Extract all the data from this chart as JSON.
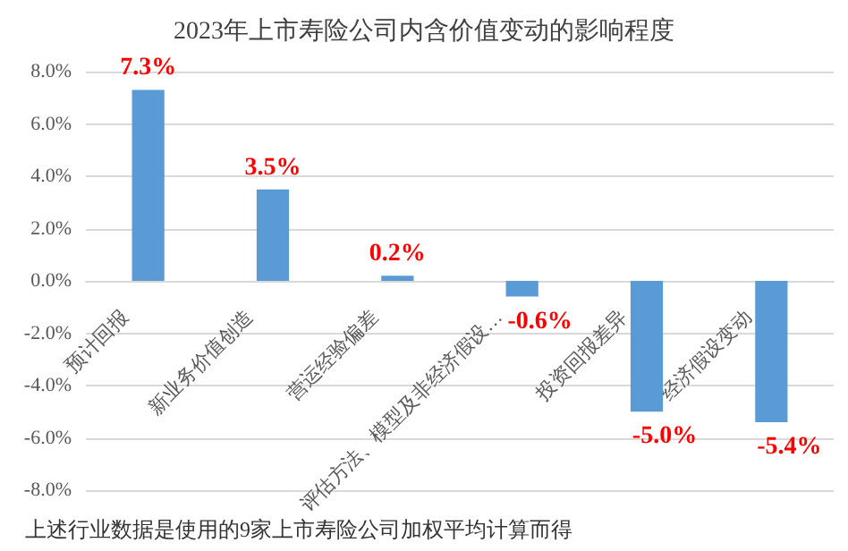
{
  "chart_data": {
    "type": "bar",
    "title": "2023年上市寿险公司内含价值变动的影响程度",
    "categories": [
      "预计回报",
      "新业务价值创造",
      "营运经验偏差",
      "评估方法、模型及非经济假设…",
      "投资回报差异",
      "经济假设变动"
    ],
    "values": [
      7.3,
      3.5,
      0.2,
      -0.6,
      -5.0,
      -5.4
    ],
    "color": "#5b9bd5",
    "value_labels": [
      "7.3%",
      "3.5%",
      "0.2%",
      "-0.6%",
      "-5.0%",
      "-5.4%"
    ],
    "ylim": [
      -8,
      8
    ],
    "yticks": [
      {
        "value": -8,
        "label": "-8.0%"
      },
      {
        "value": -6,
        "label": "-6.0%"
      },
      {
        "value": -4,
        "label": "-4.0%"
      },
      {
        "value": -2,
        "label": "-2.0%"
      },
      {
        "value": 0,
        "label": "0.0%"
      },
      {
        "value": 2,
        "label": "2.0%"
      },
      {
        "value": 4,
        "label": "4.0%"
      },
      {
        "value": 6,
        "label": "6.0%"
      },
      {
        "value": 8,
        "label": "8.0%"
      }
    ],
    "grid": "y",
    "annotations": [
      "上述行业数据是使用的9家上市寿险公司加权平均计算而得"
    ]
  }
}
